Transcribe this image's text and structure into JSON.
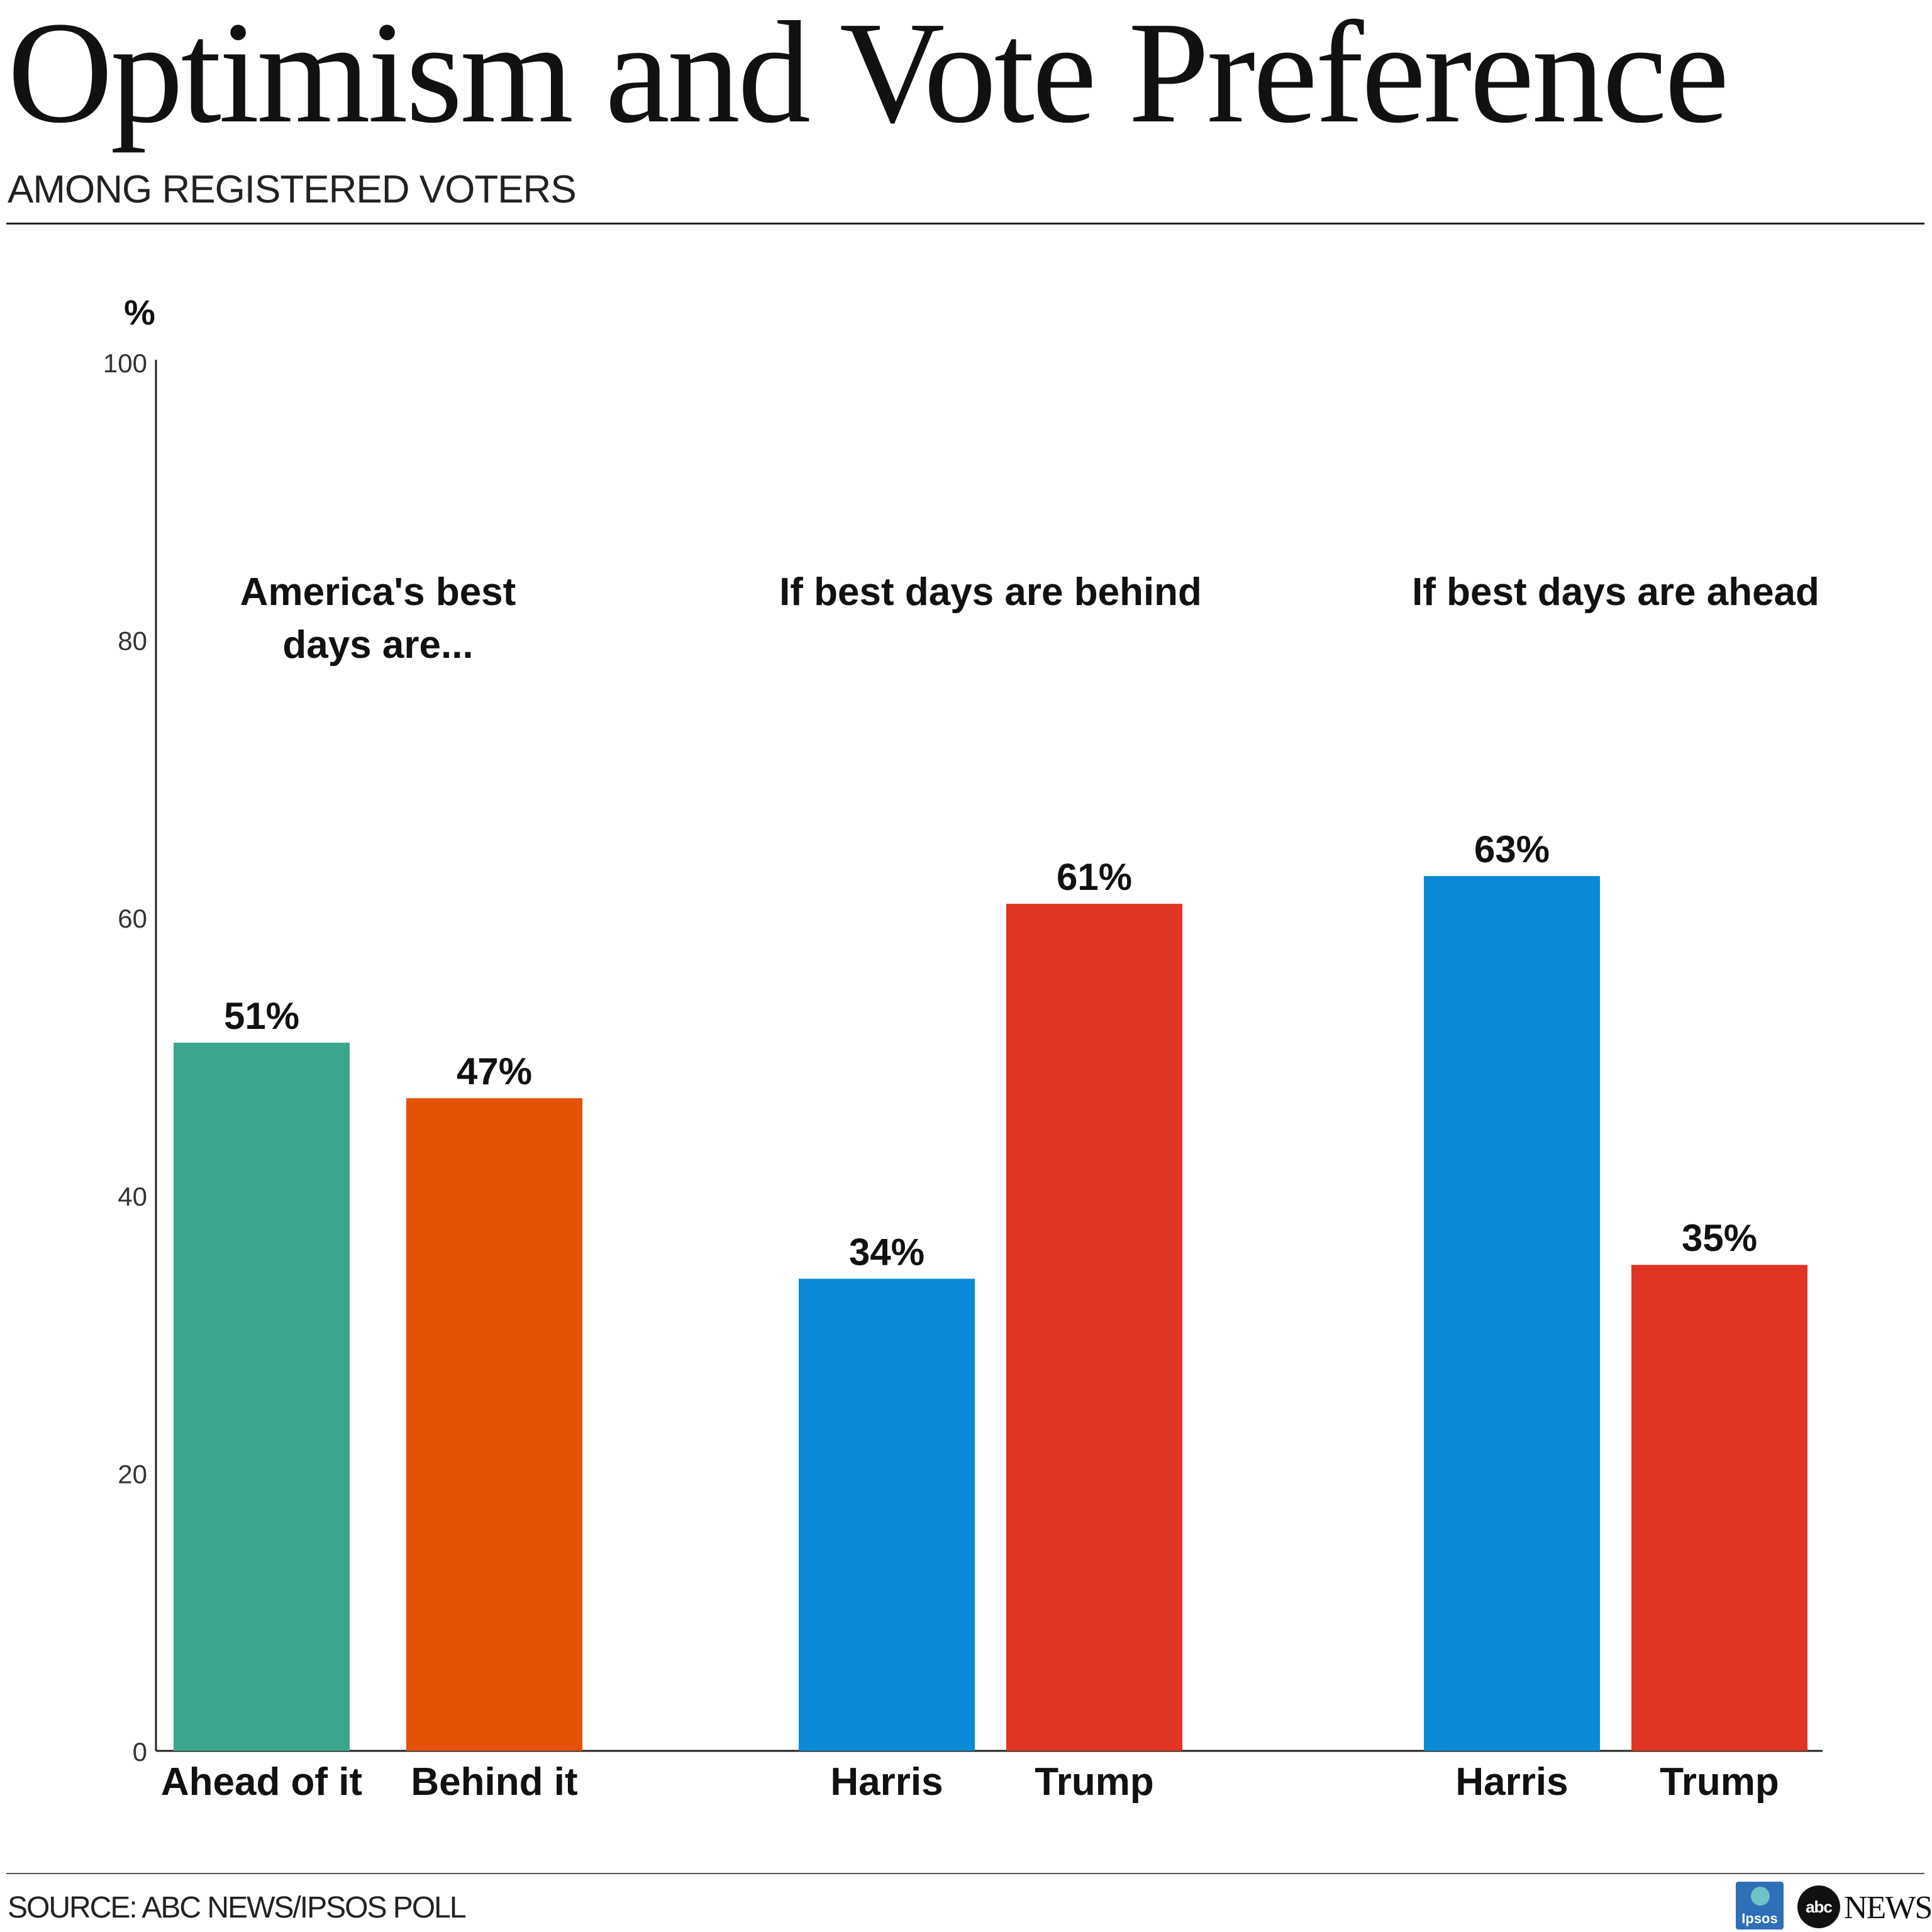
{
  "title": "Optimism and Vote Preference",
  "subtitle": "AMONG REGISTERED VOTERS",
  "source": "SOURCE: ABC NEWS/IPSOS POLL",
  "logos": {
    "ipsos": "Ipsos",
    "abc": "abc",
    "news": "NEWS"
  },
  "colors": {
    "ahead": "#3aa68e",
    "behind": "#e35205",
    "harris": "#0a8bd5",
    "trump": "#e03523",
    "axis": "#222222",
    "tick_text": "#333333",
    "label_text": "#111111"
  },
  "chart_data": {
    "type": "bar",
    "ylabel": "%",
    "ylim": [
      0,
      100
    ],
    "yticks": [
      0,
      20,
      40,
      60,
      80,
      100
    ],
    "grid": false,
    "groups": [
      {
        "title": "America's best days are...",
        "title_lines": [
          "America's best",
          "days are..."
        ],
        "bars": [
          {
            "category": "Ahead of it",
            "value": 51,
            "label": "51%",
            "color_key": "ahead"
          },
          {
            "category": "Behind it",
            "value": 47,
            "label": "47%",
            "color_key": "behind"
          }
        ]
      },
      {
        "title": "If best days are behind",
        "title_lines": [
          "If best days are behind"
        ],
        "bars": [
          {
            "category": "Harris",
            "value": 34,
            "label": "34%",
            "color_key": "harris"
          },
          {
            "category": "Trump",
            "value": 61,
            "label": "61%",
            "color_key": "trump"
          }
        ]
      },
      {
        "title": "If best days are ahead",
        "title_lines": [
          "If best days are ahead"
        ],
        "bars": [
          {
            "category": "Harris",
            "value": 63,
            "label": "63%",
            "color_key": "harris"
          },
          {
            "category": "Trump",
            "value": 35,
            "label": "35%",
            "color_key": "trump"
          }
        ]
      }
    ]
  }
}
